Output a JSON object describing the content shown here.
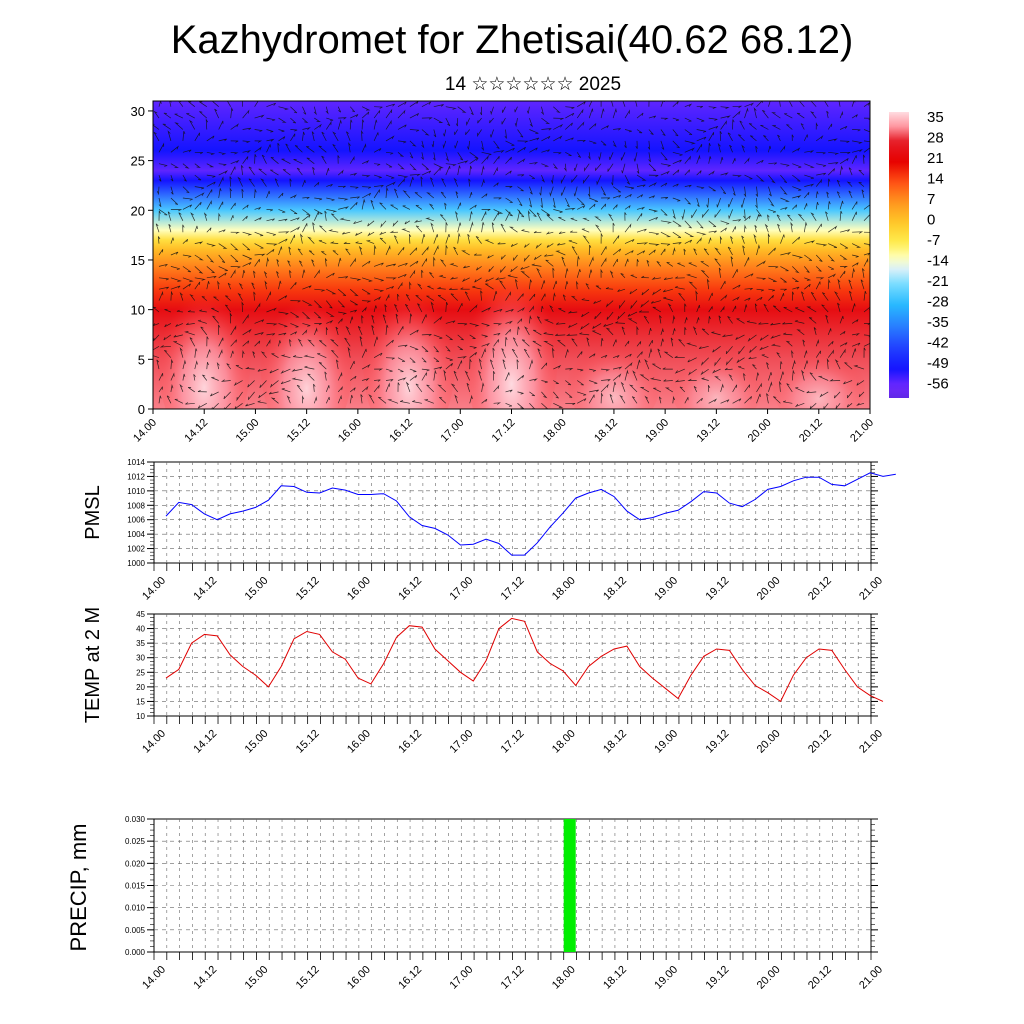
{
  "title": "Kazhydromet for Zhetisai(40.62 68.12)",
  "subtitle": "14 ☆☆☆☆☆☆ 2025",
  "chart_data": [
    {
      "type": "heatmap",
      "description_role": "vertical cross-section of temperature with wind vectors",
      "x_tick_labels": [
        "14.00",
        "14.12",
        "15.00",
        "15.12",
        "16.00",
        "16.12",
        "17.00",
        "17.12",
        "18.00",
        "18.12",
        "19.00",
        "19.12",
        "20.00",
        "20.12",
        "21.00"
      ],
      "y_ticks": [
        0,
        5,
        10,
        15,
        20,
        25,
        30
      ],
      "ylim": [
        0,
        31
      ],
      "colorbar_labels": [
        "35",
        "28",
        "21",
        "14",
        "7",
        "0",
        "-7",
        "-14",
        "-21",
        "-28",
        "-35",
        "-42",
        "-49",
        "-56"
      ],
      "colorbar_range": [
        -60,
        38
      ],
      "isotherm_profile": {
        "height": [
          0,
          5,
          10,
          12,
          14,
          16,
          17,
          18,
          20,
          23,
          24,
          26,
          28,
          31
        ],
        "temperature": [
          32,
          30,
          24,
          16,
          10,
          2,
          -4,
          -12,
          -25,
          -50,
          -55,
          -50,
          -52,
          -55
        ]
      },
      "warm_cells_x": [
        0.5,
        1.5,
        2.5,
        3.5,
        4.5,
        5.5,
        6.5
      ],
      "warm_cells_strength": [
        1.0,
        0.95,
        1.0,
        1.15,
        0.55,
        0.5,
        0.5
      ],
      "colors": {
        "warm": "#e60000",
        "cold": "#1a1aff",
        "top": "#6a35ff"
      }
    },
    {
      "type": "line",
      "ylabel": "PMSL",
      "ylim": [
        1000,
        1014
      ],
      "y_ticks": [
        1000,
        1002,
        1004,
        1006,
        1008,
        1010,
        1012,
        1014
      ],
      "x_tick_labels": [
        "14.00",
        "14.12",
        "15.00",
        "15.12",
        "16.00",
        "16.12",
        "17.00",
        "17.12",
        "18.00",
        "18.12",
        "19.00",
        "19.12",
        "20.00",
        "20.12",
        "21.00"
      ],
      "x_step_hours": 3,
      "color": "#0000ff",
      "values": [
        1006.5,
        1008.4,
        1008.1,
        1006.8,
        1006.0,
        1006.8,
        1007.2,
        1007.7,
        1008.7,
        1010.7,
        1010.6,
        1009.8,
        1009.7,
        1010.4,
        1010.1,
        1009.5,
        1009.5,
        1009.6,
        1008.6,
        1006.4,
        1005.2,
        1004.8,
        1003.9,
        1002.5,
        1002.6,
        1003.3,
        1002.7,
        1001.1,
        1001.1,
        1002.8,
        1005.0,
        1006.9,
        1009.0,
        1009.7,
        1010.2,
        1009.2,
        1007.2,
        1006.0,
        1006.3,
        1006.9,
        1007.3,
        1008.5,
        1009.9,
        1009.7,
        1008.3,
        1007.8,
        1008.8,
        1010.2,
        1010.6,
        1011.4,
        1011.9,
        1011.9,
        1010.9,
        1010.7,
        1011.6,
        1012.5,
        1012.0,
        1012.3
      ]
    },
    {
      "type": "line",
      "ylabel": "TEMP at 2 M",
      "ylim": [
        10,
        45
      ],
      "y_ticks": [
        10,
        15,
        20,
        25,
        30,
        35,
        40,
        45
      ],
      "x_tick_labels": [
        "14.00",
        "14.12",
        "15.00",
        "15.12",
        "16.00",
        "16.12",
        "17.00",
        "17.12",
        "18.00",
        "18.12",
        "19.00",
        "19.12",
        "20.00",
        "20.12",
        "21.00"
      ],
      "x_step_hours": 3,
      "color": "#e00000",
      "values": [
        23,
        26,
        35,
        38,
        37.5,
        31,
        27,
        24,
        20,
        27,
        36.5,
        39,
        38,
        32,
        29.5,
        23,
        21,
        28,
        37,
        41,
        40.5,
        33,
        29,
        25,
        22,
        29,
        40,
        43.5,
        42.5,
        32,
        28,
        25.5,
        20.5,
        27,
        30.5,
        33,
        34,
        27,
        23,
        19.5,
        16,
        24,
        30.5,
        33,
        32.5,
        26,
        20.5,
        18,
        15,
        24,
        30,
        33,
        32.5,
        26,
        20,
        17,
        15
      ]
    },
    {
      "type": "bar",
      "ylabel": "PRECIP, mm",
      "ylim": [
        0,
        0.03
      ],
      "y_tick_labels": [
        "0.000",
        "0.005",
        "0.010",
        "0.015",
        "0.020",
        "0.025",
        "0.030"
      ],
      "x_tick_labels": [
        "14.00",
        "14.12",
        "15.00",
        "15.12",
        "16.00",
        "16.12",
        "17.00",
        "17.12",
        "18.00",
        "18.12",
        "19.00",
        "19.12",
        "20.00",
        "20.12",
        "21.00"
      ],
      "bars": [
        {
          "x_hours": 96,
          "value": 0.03
        }
      ],
      "color": "#00ee00"
    }
  ]
}
